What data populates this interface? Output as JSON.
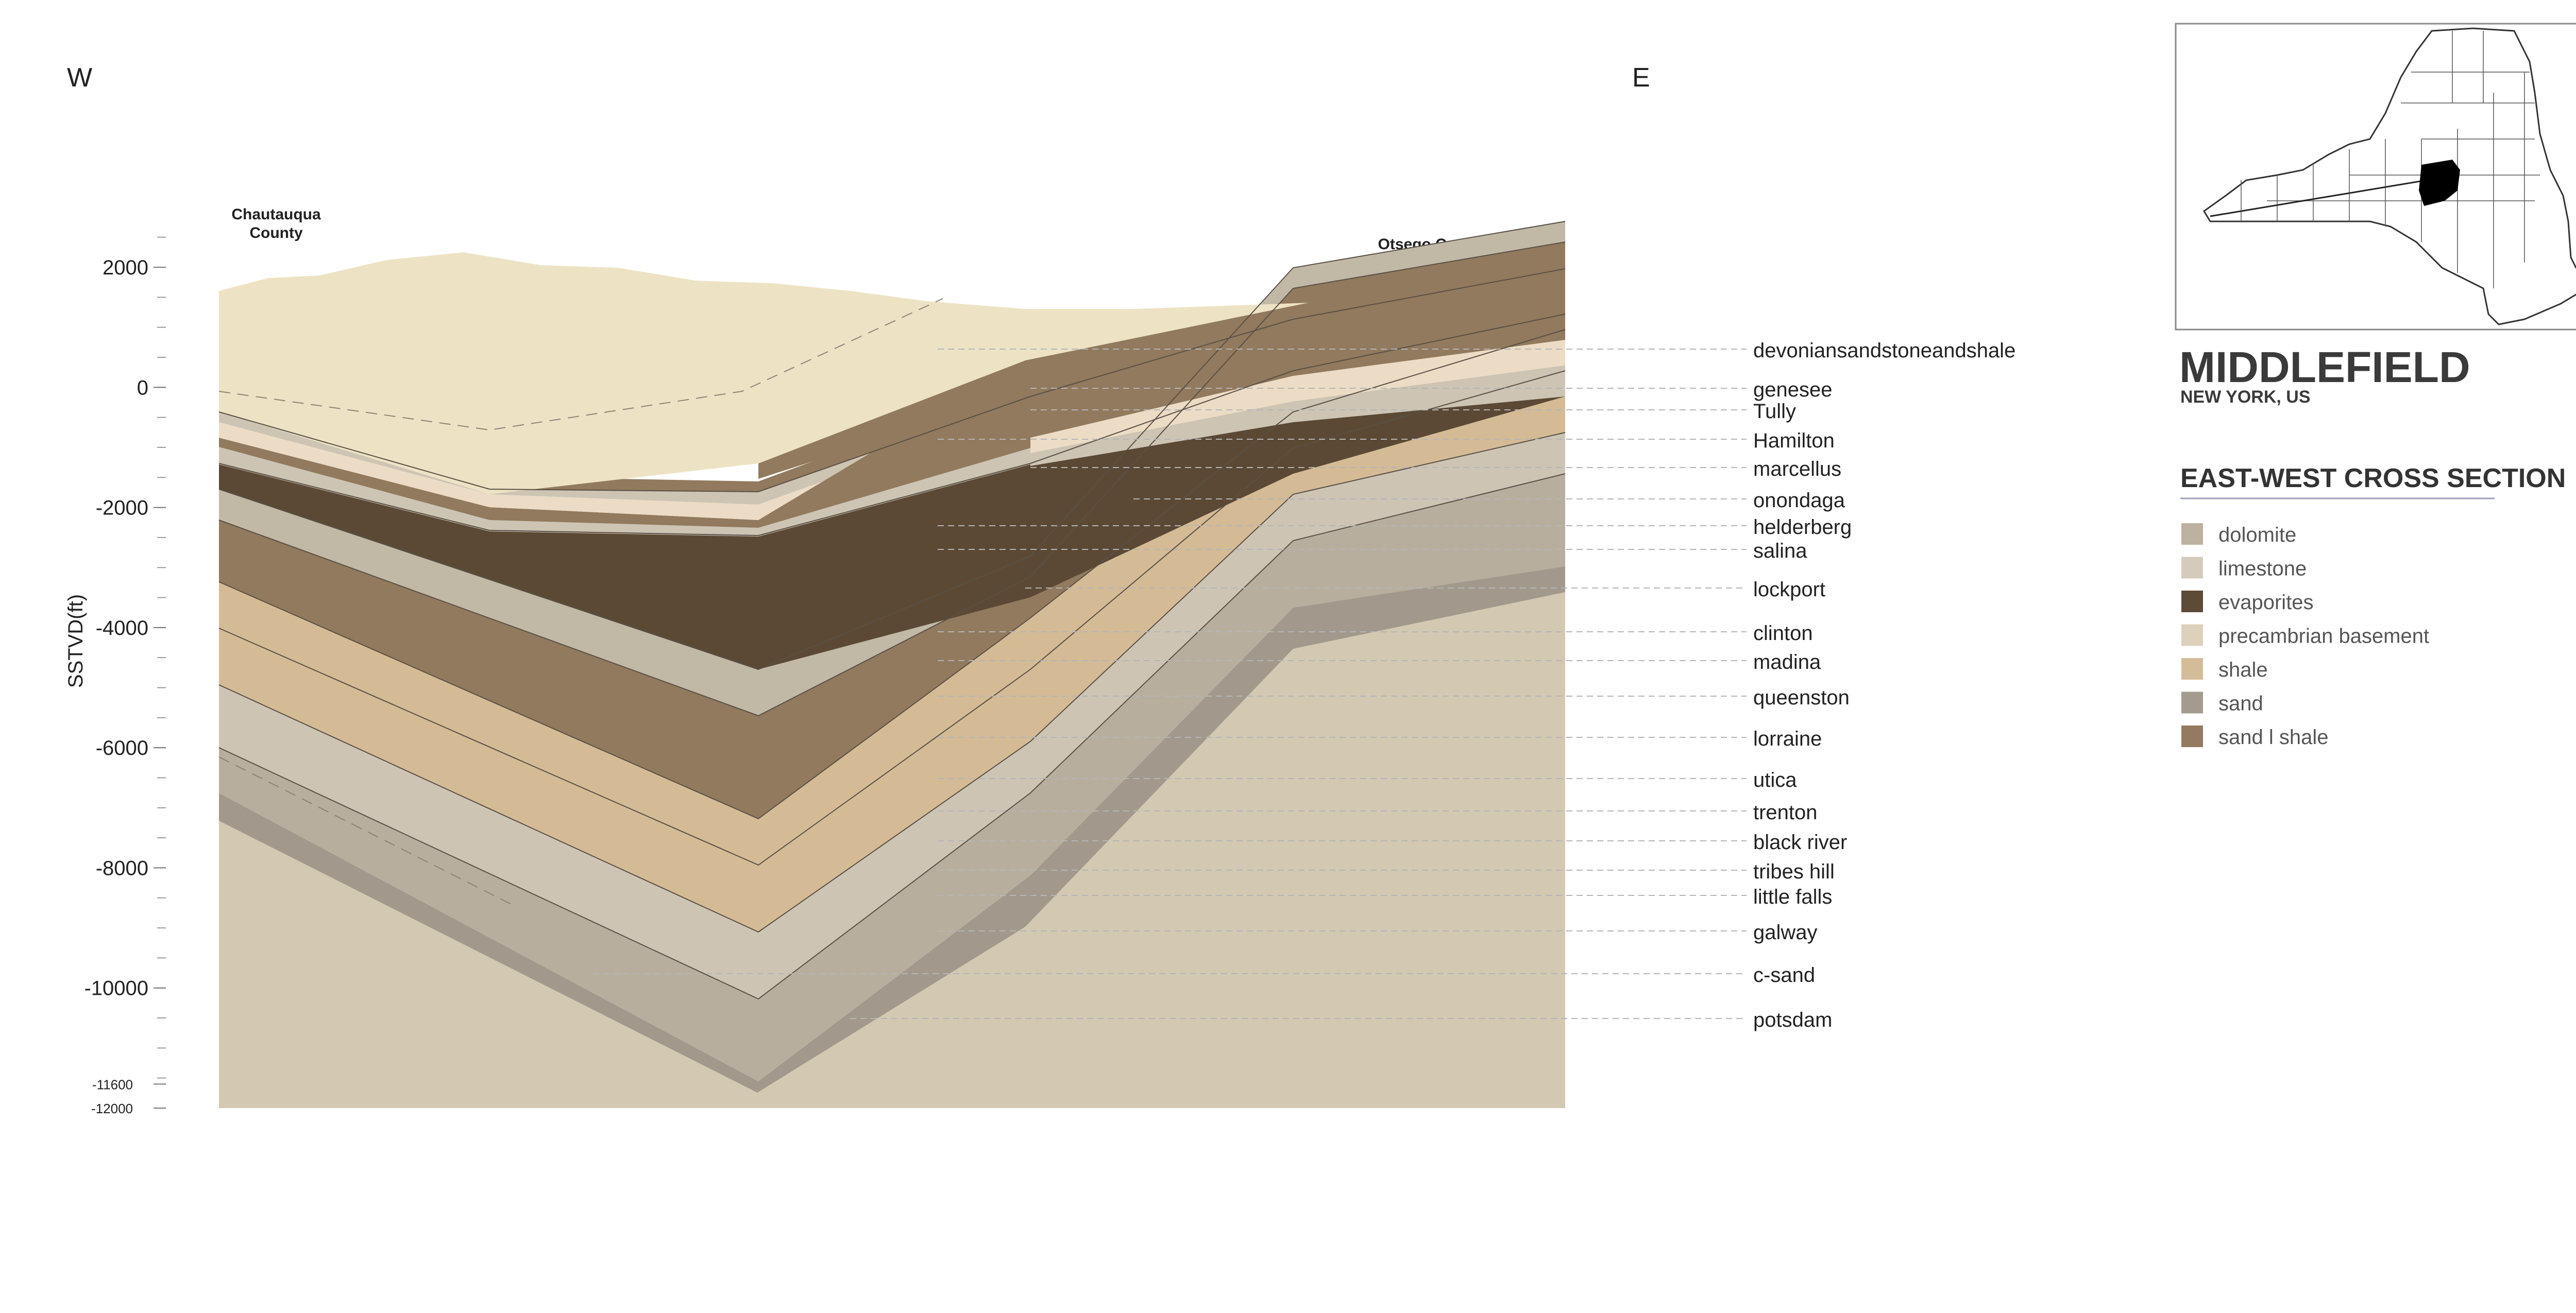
{
  "directions": {
    "west": "W",
    "east": "E"
  },
  "counties": {
    "west": "Chautauqua County",
    "east": "Otsego County"
  },
  "axis": {
    "label": "SSTVD(ft)",
    "ticks": [
      2000,
      0,
      -2000,
      -4000,
      -6000,
      -8000,
      -10000,
      -11600,
      -12000
    ],
    "range": [
      -12000,
      2200
    ]
  },
  "formations": [
    "devoniansandstoneandshale",
    "genesee",
    "Tully",
    "Hamilton",
    "marcellus",
    "onondaga",
    "helderberg",
    "salina",
    "lockport",
    "clinton",
    "madina",
    "queenston",
    "lorraine",
    "utica",
    "trenton",
    "black river",
    "tribes hill",
    "little falls",
    "galway",
    "c-sand",
    "potsdam"
  ],
  "title": {
    "name": "MIDDLEFIELD",
    "subtitle": "NEW YORK, US"
  },
  "legend": {
    "heading": "EAST-WEST CROSS SECTION",
    "items": [
      {
        "label": "dolomite",
        "color": "#bdb2a0"
      },
      {
        "label": "limestone",
        "color": "#d4cbbc"
      },
      {
        "label": "evaporites",
        "color": "#5d4a37"
      },
      {
        "label": "precambrian basement",
        "color": "#ddd1bb"
      },
      {
        "label": "shale",
        "color": "#d5bc98"
      },
      {
        "label": "sand",
        "color": "#a39b8e"
      },
      {
        "label": "sand l shale",
        "color": "#937a60"
      }
    ]
  },
  "colors": {
    "basement": "#d3c8b2",
    "sandstone_cap": "#ede3c4",
    "sandshale": "#917a5d",
    "evaporites": "#5b4935",
    "limestone": "#cdc4b4",
    "shale": "#d4bb96",
    "dolomite": "#b8ae9d",
    "sand": "#a2998c",
    "pale_shale": "#ecdcc6",
    "guide": "#b5b5b5",
    "text": "#222222",
    "title": "#3a3a3a"
  }
}
